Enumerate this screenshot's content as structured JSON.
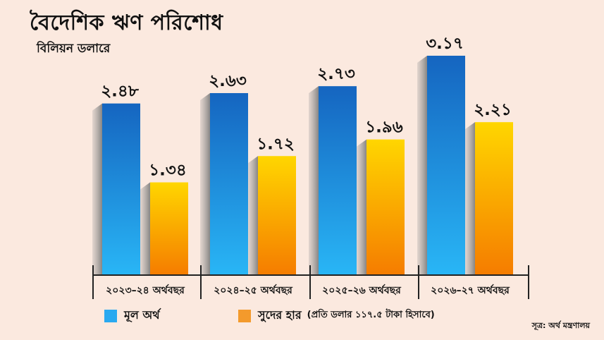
{
  "colors": {
    "background": "#fbe9df",
    "principal_top": "#1565c0",
    "principal_bottom": "#29b6f6",
    "interest_top": "#ffd600",
    "interest_bottom": "#f57c00"
  },
  "chart_data": {
    "type": "bar",
    "title": "বৈদেশিক ঋণ পরিশোধ",
    "subtitle": "বিলিয়ন ডলারে",
    "categories": [
      "২০২৩–২৪ অর্থবছর",
      "২০২৪–২৫ অর্থবছর",
      "২০২৫–২৬ অর্থবছর",
      "২০২৬–২৭ অর্থবছর"
    ],
    "series": [
      {
        "name": "মূল অর্থ",
        "values": [
          2.48,
          2.63,
          2.73,
          3.17
        ],
        "labels": [
          "২.৪৮",
          "২.৬৩",
          "২.৭৩",
          "৩.১৭"
        ]
      },
      {
        "name": "সুদের হার",
        "values": [
          1.34,
          1.72,
          1.96,
          2.21
        ],
        "labels": [
          "১.৩৪",
          "১.৭২",
          "১.৯৬",
          "২.২১"
        ]
      }
    ],
    "ylim": [
      0,
      3.17
    ],
    "grid": false,
    "legend_position": "bottom-left"
  },
  "legend": {
    "principal": "মূল অর্থ",
    "interest": "সুদের হার",
    "note": "(প্রতি ডলার ১১৭.৫ টাকা হিসাবে)"
  },
  "source": "সূত্র: অর্থ মন্ত্রণালয়"
}
